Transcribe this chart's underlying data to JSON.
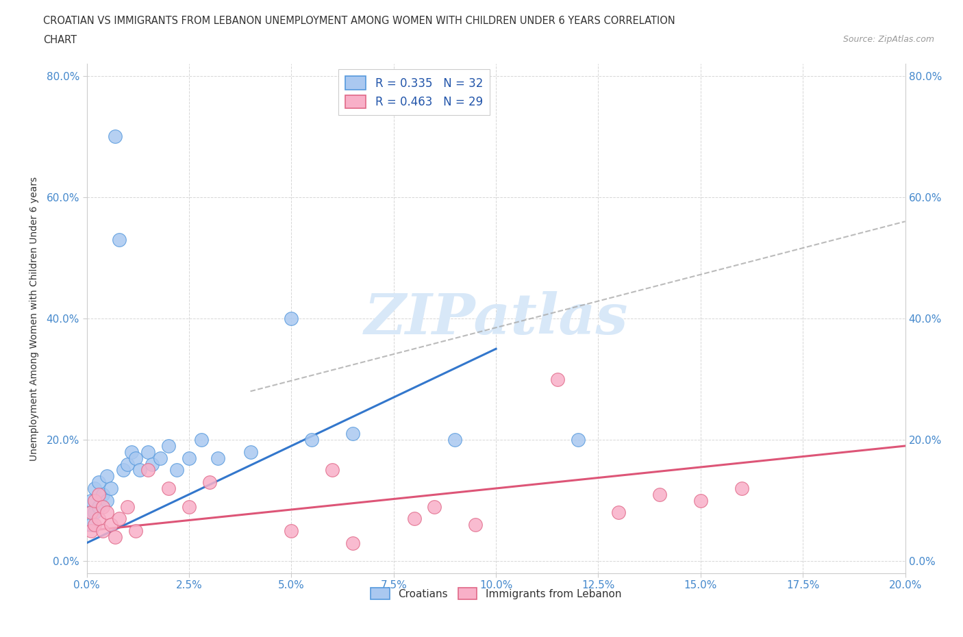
{
  "title_line1": "CROATIAN VS IMMIGRANTS FROM LEBANON UNEMPLOYMENT AMONG WOMEN WITH CHILDREN UNDER 6 YEARS CORRELATION",
  "title_line2": "CHART",
  "source": "Source: ZipAtlas.com",
  "ylabel": "Unemployment Among Women with Children Under 6 years",
  "xlim": [
    0.0,
    0.2
  ],
  "ylim": [
    -0.02,
    0.82
  ],
  "xtick_values": [
    0.0,
    0.025,
    0.05,
    0.075,
    0.1,
    0.125,
    0.15,
    0.175,
    0.2
  ],
  "ytick_values": [
    0.0,
    0.2,
    0.4,
    0.6,
    0.8
  ],
  "croatian_color": "#aac8f0",
  "croatian_edge_color": "#5599dd",
  "lebanon_color": "#f8b0c8",
  "lebanon_edge_color": "#e06888",
  "trendline_croatian_color": "#3377cc",
  "trendline_lebanon_color": "#dd5577",
  "trendline_gray_color": "#aaaaaa",
  "R_croatian": 0.335,
  "N_croatian": 32,
  "R_lebanon": 0.463,
  "N_lebanon": 29,
  "watermark_color": "#d8e8f8",
  "background_color": "#ffffff",
  "grid_color": "#cccccc"
}
